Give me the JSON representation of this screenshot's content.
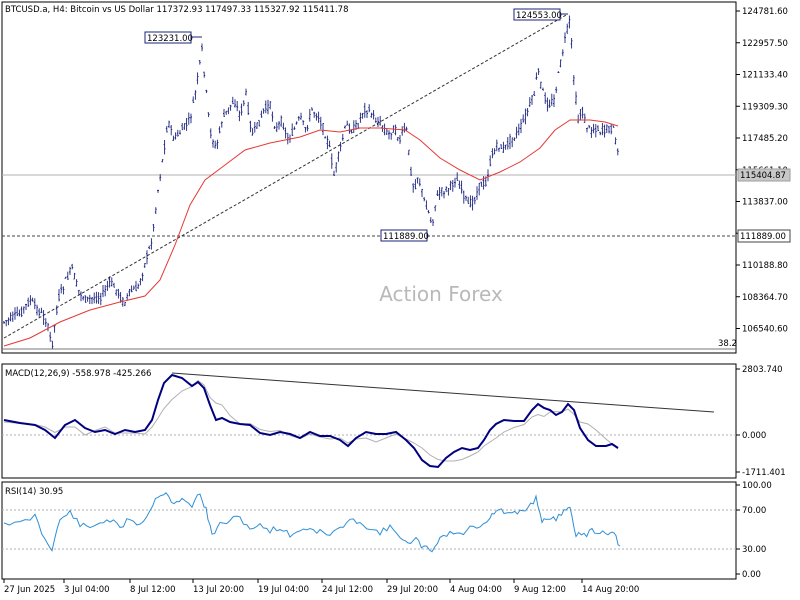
{
  "header": {
    "title_line": "BTCUSD.a, H4:  Bitcoin vs US Dollar  117372.93 117497.33 115327.92 115411.78"
  },
  "watermark": "Action Forex",
  "colors": {
    "candles": "#1a237e",
    "ma": "#e53935",
    "macd": "#000080",
    "signal": "#b0b0b0",
    "rsi": "#2f8fd6",
    "axis": "#000000",
    "grid_dash": "#9e9e9e"
  },
  "chart_data": [
    {
      "type": "candlestick",
      "title": "BTCUSD.a, H4:  Bitcoin vs US Dollar",
      "ohlc_last": {
        "open": 117372.93,
        "high": 117497.33,
        "low": 115327.92,
        "close": 115411.78
      },
      "y_ticks": [
        "124781.60",
        "122957.50",
        "121133.40",
        "119309.30",
        "117485.20",
        "115661.10",
        "113837.00",
        "112012.90",
        "110188.80",
        "108364.70",
        "106540.60"
      ],
      "y_range": [
        105200,
        125100
      ],
      "current_price_label": "115404.87",
      "horizontal_level_label": "111889.00",
      "fib_label": "38.2",
      "annotations": [
        "123231.00",
        "124553.00",
        "111889.00"
      ],
      "trendline": "dashed up-sloping line from late June low to the 124553 high",
      "moving_average": "red line"
    },
    {
      "type": "line",
      "title": "MACD(12,26,9) -558.978 -425.266",
      "y_ticks": [
        "2803.740",
        "0.000",
        "-1711.401"
      ],
      "y_range": [
        -2000,
        3050
      ],
      "series": [
        {
          "name": "MACD",
          "values": []
        },
        {
          "name": "Signal",
          "values": []
        }
      ],
      "trendline": "descending line from 13 Jul peak to right edge"
    },
    {
      "type": "line",
      "title": "RSI(14) 30.95",
      "y_ticks": [
        "100.00",
        "70.00",
        "30.00",
        "0.00"
      ],
      "y_range": [
        0,
        100
      ],
      "levels": [
        70,
        30
      ]
    }
  ],
  "x_axis": {
    "labels": [
      "27 Jun 2025",
      "3 Jul 04:00",
      "8 Jul 12:00",
      "13 Jul 20:00",
      "19 Jul 04:00",
      "24 Jul 12:00",
      "29 Jul 20:00",
      "4 Aug 04:00",
      "9 Aug 12:00",
      "14 Aug 20:00"
    ]
  }
}
